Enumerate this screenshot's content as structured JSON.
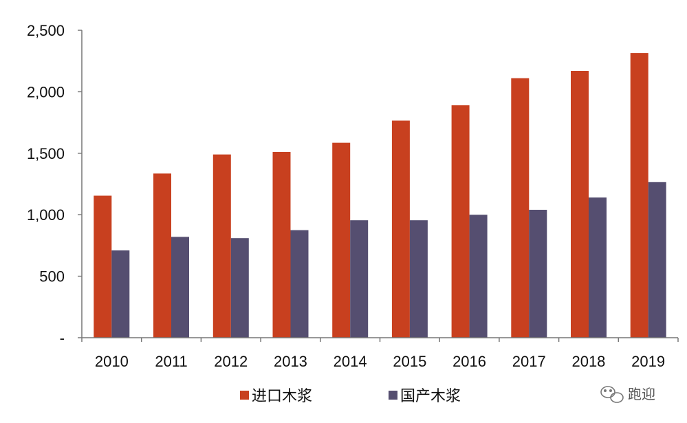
{
  "chart_data": {
    "type": "bar",
    "categories": [
      "2010",
      "2011",
      "2012",
      "2013",
      "2014",
      "2015",
      "2016",
      "2017",
      "2018",
      "2019"
    ],
    "series": [
      {
        "name": "进口木浆",
        "values": [
          1155,
          1335,
          1490,
          1510,
          1585,
          1765,
          1890,
          2110,
          2170,
          2315
        ],
        "color": "#c8401f"
      },
      {
        "name": "国产木浆",
        "values": [
          710,
          820,
          810,
          875,
          955,
          955,
          1000,
          1040,
          1140,
          1265
        ],
        "color": "#554e70"
      }
    ],
    "y_ticks": [
      {
        "value": 0,
        "label": "-"
      },
      {
        "value": 500,
        "label": "500"
      },
      {
        "value": 1000,
        "label": "1,000"
      },
      {
        "value": 1500,
        "label": "1,500"
      },
      {
        "value": 2000,
        "label": "2,000"
      },
      {
        "value": 2500,
        "label": "2,500"
      }
    ],
    "ylim": [
      0,
      2500
    ],
    "title": "",
    "xlabel": "",
    "ylabel": "",
    "grid": false,
    "legend_position": "bottom-center"
  },
  "watermark": {
    "text": "跑迎",
    "icon": "wechat-icon"
  }
}
